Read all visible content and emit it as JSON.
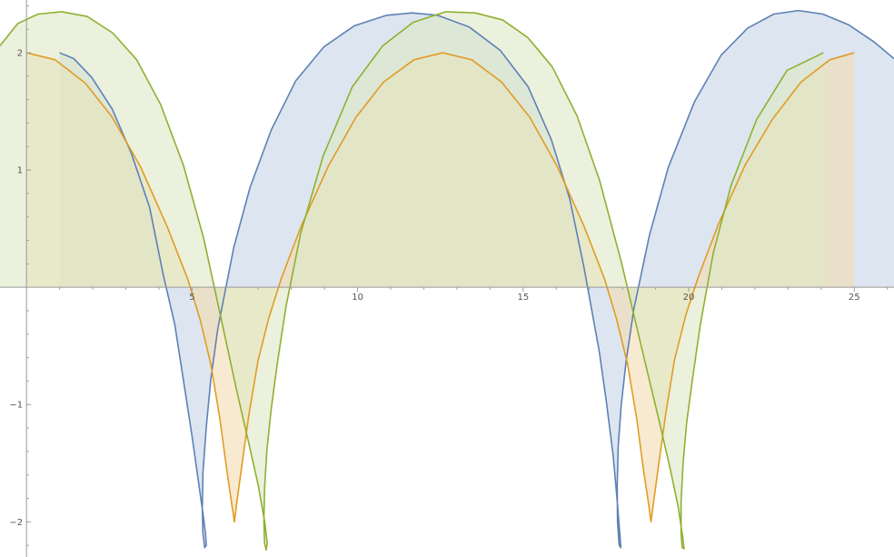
{
  "chart_data": {
    "type": "area",
    "title": "",
    "xlabel": "",
    "ylabel": "",
    "xlim": [
      -0.8,
      26.2
    ],
    "ylim": [
      -2.3,
      2.45
    ],
    "x_ticks": [
      5,
      10,
      15,
      20,
      25
    ],
    "x_tick_labels": [
      "5",
      "10",
      "15",
      "20",
      "25"
    ],
    "y_ticks": [
      -2,
      -1,
      1,
      2
    ],
    "y_tick_labels": [
      "−2",
      "−1",
      "1",
      "2"
    ],
    "grid": false,
    "legend": "none",
    "filling": "to-axis",
    "series": [
      {
        "color": "#5e81b5",
        "fill": "#c6d3e6",
        "points": [
          [
            1,
            2
          ],
          [
            1.43,
            1.95
          ],
          [
            1.97,
            1.79
          ],
          [
            2.59,
            1.52
          ],
          [
            3.17,
            1.14
          ],
          [
            3.72,
            0.68
          ],
          [
            4.12,
            0.12
          ],
          [
            4.48,
            -0.32
          ],
          [
            4.76,
            -0.83
          ],
          [
            5.0,
            -1.27
          ],
          [
            5.19,
            -1.65
          ],
          [
            5.34,
            -1.95
          ],
          [
            5.41,
            -2.11
          ],
          [
            5.43,
            -2.2
          ],
          [
            5.38,
            -2.22
          ],
          [
            5.33,
            -2.1
          ],
          [
            5.31,
            -1.89
          ],
          [
            5.33,
            -1.58
          ],
          [
            5.43,
            -1.19
          ],
          [
            5.57,
            -0.78
          ],
          [
            5.78,
            -0.35
          ],
          [
            6.26,
            0.34
          ],
          [
            6.75,
            0.85
          ],
          [
            7.39,
            1.34
          ],
          [
            8.13,
            1.76
          ],
          [
            8.98,
            2.05
          ],
          [
            9.9,
            2.23
          ],
          [
            10.88,
            2.32
          ],
          [
            11.65,
            2.34
          ],
          [
            12.41,
            2.32
          ],
          [
            13.37,
            2.22
          ],
          [
            14.31,
            2.02
          ],
          [
            15.15,
            1.71
          ],
          [
            15.85,
            1.26
          ],
          [
            16.41,
            0.75
          ],
          [
            16.83,
            0.18
          ],
          [
            17.3,
            -0.55
          ],
          [
            17.51,
            -0.97
          ],
          [
            17.72,
            -1.44
          ],
          [
            17.84,
            -1.82
          ],
          [
            17.93,
            -2.14
          ],
          [
            17.95,
            -2.22
          ],
          [
            17.9,
            -2.2
          ],
          [
            17.85,
            -2.0
          ],
          [
            17.84,
            -1.7
          ],
          [
            17.87,
            -1.36
          ],
          [
            17.96,
            -1.01
          ],
          [
            18.11,
            -0.63
          ],
          [
            18.34,
            -0.19
          ],
          [
            18.81,
            0.44
          ],
          [
            19.38,
            1.02
          ],
          [
            20.17,
            1.58
          ],
          [
            20.98,
            1.98
          ],
          [
            21.78,
            2.21
          ],
          [
            22.57,
            2.33
          ],
          [
            23.31,
            2.36
          ],
          [
            24.05,
            2.33
          ],
          [
            24.82,
            2.24
          ],
          [
            25.61,
            2.09
          ],
          [
            26.2,
            1.95
          ]
        ]
      },
      {
        "color": "#e19c24",
        "fill": "#f4dcb0",
        "points": [
          [
            0,
            2
          ],
          [
            0.87,
            1.94
          ],
          [
            1.78,
            1.74
          ],
          [
            2.59,
            1.45
          ],
          [
            3.44,
            1.03
          ],
          [
            4.26,
            0.51
          ],
          [
            4.87,
            0.07
          ],
          [
            5.25,
            -0.28
          ],
          [
            5.57,
            -0.66
          ],
          [
            5.84,
            -1.12
          ],
          [
            6.06,
            -1.58
          ],
          [
            6.21,
            -1.87
          ],
          [
            6.28,
            -2.0
          ],
          [
            6.34,
            -1.86
          ],
          [
            6.49,
            -1.55
          ],
          [
            6.71,
            -1.1
          ],
          [
            6.99,
            -0.63
          ],
          [
            7.32,
            -0.26
          ],
          [
            7.69,
            0.07
          ],
          [
            8.28,
            0.51
          ],
          [
            9.11,
            1.03
          ],
          [
            9.95,
            1.45
          ],
          [
            10.78,
            1.75
          ],
          [
            11.7,
            1.94
          ],
          [
            12.57,
            2.0
          ],
          [
            13.45,
            1.94
          ],
          [
            14.35,
            1.75
          ],
          [
            15.2,
            1.45
          ],
          [
            16.03,
            1.03
          ],
          [
            16.84,
            0.52
          ],
          [
            17.46,
            0.07
          ],
          [
            17.82,
            -0.27
          ],
          [
            18.15,
            -0.65
          ],
          [
            18.43,
            -1.12
          ],
          [
            18.64,
            -1.57
          ],
          [
            18.8,
            -1.87
          ],
          [
            18.86,
            -2.0
          ],
          [
            18.93,
            -1.85
          ],
          [
            19.08,
            -1.54
          ],
          [
            19.3,
            -1.09
          ],
          [
            19.57,
            -0.62
          ],
          [
            19.91,
            -0.24
          ],
          [
            20.28,
            0.08
          ],
          [
            20.9,
            0.54
          ],
          [
            21.7,
            1.04
          ],
          [
            22.52,
            1.43
          ],
          [
            23.39,
            1.75
          ],
          [
            24.26,
            1.94
          ],
          [
            25.0,
            2.0
          ]
        ]
      },
      {
        "color": "#8fb032",
        "fill": "#dde8c4",
        "points": [
          [
            -0.8,
            2.06
          ],
          [
            -0.26,
            2.25
          ],
          [
            0.35,
            2.33
          ],
          [
            1.06,
            2.35
          ],
          [
            1.83,
            2.31
          ],
          [
            2.6,
            2.17
          ],
          [
            3.33,
            1.94
          ],
          [
            4.05,
            1.56
          ],
          [
            4.74,
            1.04
          ],
          [
            5.35,
            0.42
          ],
          [
            5.88,
            -0.27
          ],
          [
            6.34,
            -0.87
          ],
          [
            6.73,
            -1.35
          ],
          [
            7.0,
            -1.69
          ],
          [
            7.2,
            -2.01
          ],
          [
            7.27,
            -2.18
          ],
          [
            7.24,
            -2.24
          ],
          [
            7.19,
            -2.18
          ],
          [
            7.17,
            -2.0
          ],
          [
            7.19,
            -1.72
          ],
          [
            7.26,
            -1.39
          ],
          [
            7.39,
            -1.04
          ],
          [
            7.58,
            -0.64
          ],
          [
            7.84,
            -0.16
          ],
          [
            8.28,
            0.46
          ],
          [
            8.96,
            1.12
          ],
          [
            9.84,
            1.71
          ],
          [
            10.76,
            2.06
          ],
          [
            11.68,
            2.26
          ],
          [
            12.67,
            2.35
          ],
          [
            13.55,
            2.34
          ],
          [
            14.38,
            2.28
          ],
          [
            15.14,
            2.13
          ],
          [
            15.88,
            1.88
          ],
          [
            16.63,
            1.46
          ],
          [
            17.31,
            0.91
          ],
          [
            17.97,
            0.21
          ],
          [
            18.59,
            -0.53
          ],
          [
            19.1,
            -1.13
          ],
          [
            19.45,
            -1.56
          ],
          [
            19.68,
            -1.87
          ],
          [
            19.82,
            -2.13
          ],
          [
            19.86,
            -2.23
          ],
          [
            19.8,
            -2.22
          ],
          [
            19.77,
            -2.09
          ],
          [
            19.77,
            -1.83
          ],
          [
            19.83,
            -1.5
          ],
          [
            19.94,
            -1.15
          ],
          [
            20.12,
            -0.77
          ],
          [
            20.35,
            -0.32
          ],
          [
            20.74,
            0.29
          ],
          [
            21.28,
            0.87
          ],
          [
            22.05,
            1.43
          ],
          [
            22.97,
            1.85
          ],
          [
            24.07,
            2.0
          ]
        ]
      }
    ]
  }
}
